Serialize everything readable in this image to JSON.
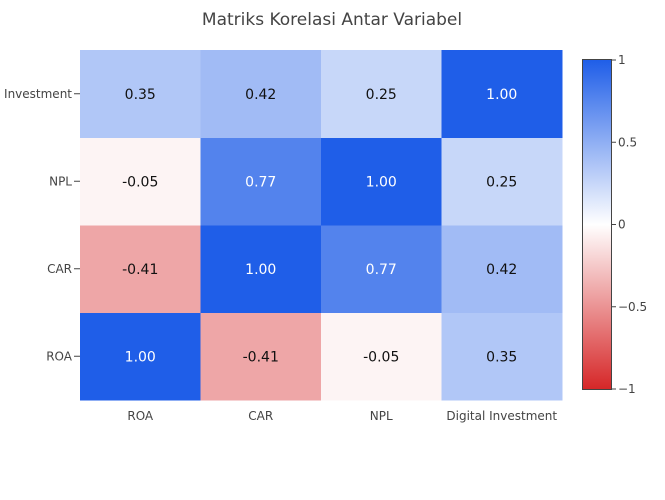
{
  "chart_data": {
    "type": "heatmap",
    "title": "Matriks Korelasi Antar Variabel",
    "x_categories": [
      "ROA",
      "CAR",
      "NPL",
      "Digital Investment"
    ],
    "y_categories": [
      "ROA",
      "CAR",
      "NPL",
      "Digital Investment"
    ],
    "y_tick_labels_shown": [
      "ROA",
      "CAR",
      "NPL",
      "Investment"
    ],
    "z": [
      [
        1.0,
        -0.41,
        -0.05,
        0.35
      ],
      [
        -0.41,
        1.0,
        0.77,
        0.42
      ],
      [
        -0.05,
        0.77,
        1.0,
        0.25
      ],
      [
        0.35,
        0.42,
        0.25,
        1.0
      ]
    ],
    "cell_labels": [
      [
        "1.00",
        "-0.41",
        "-0.05",
        "0.35"
      ],
      [
        "-0.41",
        "1.00",
        "0.77",
        "0.42"
      ],
      [
        "-0.05",
        "0.77",
        "1.00",
        "0.25"
      ],
      [
        "0.35",
        "0.42",
        "0.25",
        "1.00"
      ]
    ],
    "zlim": [
      -1,
      1
    ],
    "colorscale": {
      "low": "#d62728",
      "mid": "#ffffff",
      "high": "#1f5ee8"
    },
    "colorbar": {
      "ticks": [
        1,
        0.5,
        0,
        -0.5,
        -1
      ],
      "tick_labels": [
        "1",
        "0.5",
        "0",
        "−0.5",
        "−1"
      ]
    },
    "y_order": "bottom-to-top",
    "legend_placement": "right"
  }
}
